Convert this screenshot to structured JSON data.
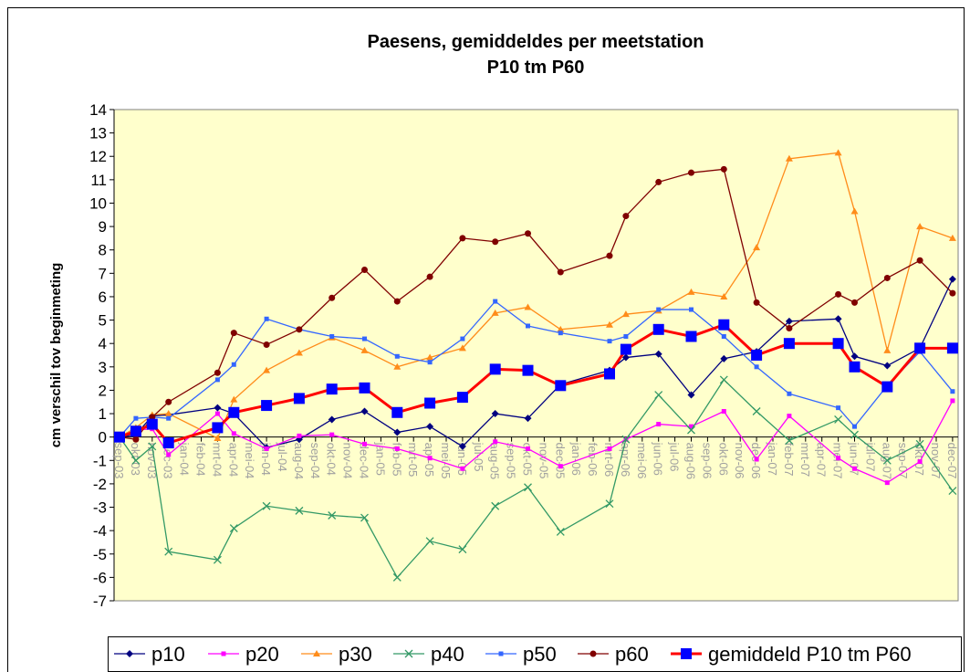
{
  "chart_data": {
    "type": "line",
    "title": "Paesens, gemiddeldes per meetstation",
    "subtitle": "P10 tm P60",
    "y_label": "cm verschil tov beginmeting",
    "xticks": [
      "sep-03",
      "okt-03",
      "nov-03",
      "dec-03",
      "jan-04",
      "feb-04",
      "mrt-04",
      "apr-04",
      "mei-04",
      "jun-04",
      "jul-04",
      "aug-04",
      "sep-04",
      "okt-04",
      "nov-04",
      "dec-04",
      "jan-05",
      "feb-05",
      "mrt-05",
      "apr-05",
      "mei-05",
      "jun-05",
      "jul-05",
      "aug-05",
      "sep-05",
      "okt-05",
      "nov-05",
      "dec-05",
      "jan-06",
      "feb-06",
      "mrt-06",
      "apr-06",
      "mei-06",
      "jun-06",
      "jul-06",
      "aug-06",
      "sep-06",
      "okt-06",
      "nov-06",
      "dec-06",
      "jan-07",
      "feb-07",
      "mrt-07",
      "apr-07",
      "mei-07",
      "jun-07",
      "jul-07",
      "aug-07",
      "sep-07",
      "okt-07",
      "nov-07",
      "dec-07"
    ],
    "x": [
      "sep-03",
      "okt-03",
      "nov-03",
      "dec-03",
      "mrt-04",
      "apr-04",
      "jun-04",
      "aug-04",
      "okt-04",
      "dec-04",
      "feb-05",
      "apr-05",
      "jun-05",
      "aug-05",
      "okt-05",
      "dec-05",
      "mrt-06",
      "apr-06",
      "jun-06",
      "aug-06",
      "okt-06",
      "dec-06",
      "feb-07",
      "mei-07",
      "jun-07",
      "aug-07",
      "okt-07",
      "dec-07"
    ],
    "ylim": [
      -7,
      14
    ],
    "yticks": [
      -7,
      -6,
      -5,
      -4,
      -3,
      -2,
      -1,
      0,
      1,
      2,
      3,
      4,
      5,
      6,
      7,
      8,
      9,
      10,
      11,
      12,
      13,
      14
    ],
    "grid": false,
    "legend": "bottom",
    "series": [
      {
        "name": "p10",
        "color": "#000080",
        "marker": "diamond",
        "values": [
          0,
          0.1,
          0.9,
          0.95,
          1.25,
          1.0,
          -0.45,
          -0.1,
          0.75,
          1.1,
          0.2,
          0.45,
          -0.4,
          1.0,
          0.8,
          2.25,
          2.85,
          3.4,
          3.55,
          1.8,
          3.35,
          3.65,
          4.95,
          5.05,
          3.45,
          3.05,
          3.8,
          6.75
        ]
      },
      {
        "name": "p20",
        "color": "#ff00ff",
        "marker": "square",
        "values": [
          0,
          0.3,
          0.35,
          -0.75,
          1.0,
          0.15,
          -0.5,
          0.05,
          0.1,
          -0.3,
          -0.5,
          -0.9,
          -1.35,
          -0.2,
          -0.5,
          -1.25,
          -0.5,
          -0.1,
          0.55,
          0.45,
          1.1,
          -0.95,
          0.9,
          -0.9,
          -1.35,
          -1.95,
          -1.05,
          1.55
        ]
      },
      {
        "name": "p30",
        "color": "#ff8c1a",
        "marker": "triangle",
        "values": [
          0,
          0.4,
          0.95,
          1.0,
          -0.05,
          1.6,
          2.85,
          3.6,
          4.25,
          3.7,
          3.0,
          3.4,
          3.8,
          5.3,
          5.55,
          4.6,
          4.8,
          5.25,
          5.4,
          6.2,
          6.0,
          8.1,
          11.9,
          12.15,
          9.65,
          3.7,
          9.0,
          8.5
        ]
      },
      {
        "name": "p40",
        "color": "#339966",
        "marker": "x",
        "values": [
          0,
          -1.0,
          -0.4,
          -4.9,
          -5.25,
          -3.9,
          -2.95,
          -3.15,
          -3.35,
          -3.45,
          -6.0,
          -4.45,
          -4.8,
          -2.95,
          -2.15,
          -4.05,
          -2.85,
          -0.1,
          1.8,
          0.3,
          2.45,
          1.1,
          -0.15,
          0.75,
          0.1,
          -1.0,
          -0.3,
          -2.3
        ]
      },
      {
        "name": "p50",
        "color": "#3366ff",
        "marker": "square",
        "values": [
          0,
          0.8,
          0.85,
          0.8,
          2.45,
          3.1,
          5.05,
          4.6,
          4.3,
          4.2,
          3.45,
          3.2,
          4.2,
          5.8,
          4.75,
          4.45,
          4.1,
          4.3,
          5.45,
          5.45,
          4.3,
          3.0,
          1.85,
          1.25,
          0.45,
          2.2,
          3.65,
          1.95
        ]
      },
      {
        "name": "p60",
        "color": "#800000",
        "marker": "circle",
        "values": [
          0,
          -0.1,
          0.85,
          1.5,
          2.75,
          4.45,
          3.95,
          4.6,
          5.95,
          7.15,
          5.8,
          6.85,
          8.5,
          8.35,
          8.7,
          7.05,
          7.75,
          9.45,
          10.9,
          11.3,
          11.45,
          5.75,
          4.65,
          6.1,
          5.75,
          6.8,
          7.55,
          6.15
        ]
      },
      {
        "name": "gemiddeld P10 tm P60",
        "color": "#ff0000",
        "marker": "bigsquare",
        "marker_color": "#0000ff",
        "values": [
          0,
          0.25,
          0.55,
          -0.25,
          0.4,
          1.05,
          1.35,
          1.65,
          2.05,
          2.1,
          1.05,
          1.45,
          1.7,
          2.9,
          2.85,
          2.2,
          2.7,
          3.75,
          4.6,
          4.3,
          4.8,
          3.5,
          4.0,
          4.0,
          3.0,
          2.15,
          3.8,
          3.8
        ]
      }
    ]
  }
}
